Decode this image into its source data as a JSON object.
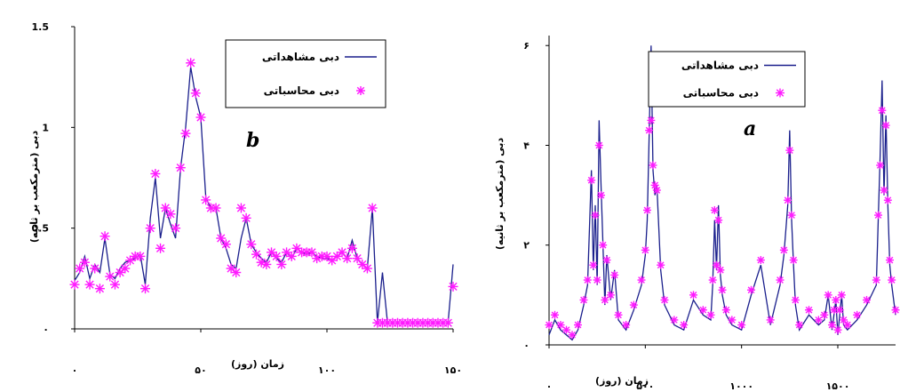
{
  "colors": {
    "observed": "#1a1f8c",
    "computed": "#ff1aff",
    "axis": "#000000"
  },
  "chart_data": [
    {
      "type": "line",
      "panel_label": "b",
      "ylabel": "دبی (مترمکعب بر ثانیه)",
      "xlabel": "زمان (روز)",
      "x_ticks": [
        {
          "value": 0,
          "label": "۰"
        },
        {
          "value": 50,
          "label": "۵۰"
        },
        {
          "value": 100,
          "label": "۱۰۰"
        },
        {
          "value": 150,
          "label": "۱۵۰"
        }
      ],
      "y_ticks": [
        {
          "value": 0,
          "label": "۰"
        },
        {
          "value": 0.5,
          "label": "0.5"
        },
        {
          "value": 1,
          "label": "1"
        },
        {
          "value": 1.5,
          "label": "1.5"
        }
      ],
      "xlim": [
        0,
        150
      ],
      "ylim": [
        0,
        1.5
      ],
      "legend": {
        "position": "top-right"
      },
      "series": [
        {
          "name": "دبی مشاهداتی",
          "style": "line",
          "x": [
            0,
            2,
            4,
            6,
            8,
            10,
            12,
            14,
            16,
            18,
            20,
            22,
            24,
            26,
            28,
            30,
            32,
            34,
            36,
            38,
            40,
            42,
            44,
            46,
            48,
            50,
            52,
            54,
            56,
            58,
            60,
            62,
            64,
            66,
            68,
            70,
            72,
            74,
            76,
            78,
            80,
            82,
            84,
            86,
            88,
            90,
            92,
            94,
            96,
            98,
            100,
            102,
            104,
            106,
            108,
            110,
            112,
            114,
            116,
            118,
            120,
            122,
            124,
            126,
            128,
            130,
            132,
            134,
            136,
            138,
            140,
            142,
            144,
            146,
            148,
            150
          ],
          "values": [
            0.24,
            0.28,
            0.36,
            0.25,
            0.32,
            0.28,
            0.45,
            0.27,
            0.25,
            0.3,
            0.33,
            0.34,
            0.35,
            0.37,
            0.22,
            0.55,
            0.75,
            0.45,
            0.6,
            0.52,
            0.45,
            0.8,
            1.0,
            1.3,
            1.15,
            1.05,
            0.65,
            0.6,
            0.6,
            0.45,
            0.4,
            0.32,
            0.3,
            0.45,
            0.55,
            0.42,
            0.38,
            0.35,
            0.33,
            0.38,
            0.35,
            0.33,
            0.38,
            0.35,
            0.4,
            0.38,
            0.37,
            0.38,
            0.36,
            0.35,
            0.35,
            0.34,
            0.36,
            0.38,
            0.35,
            0.44,
            0.35,
            0.32,
            0.3,
            0.6,
            0.03,
            0.28,
            0.03,
            0.03,
            0.03,
            0.03,
            0.03,
            0.03,
            0.03,
            0.03,
            0.03,
            0.03,
            0.03,
            0.03,
            0.03,
            0.32
          ]
        },
        {
          "name": "دبی محاسباتی",
          "style": "marker",
          "x": [
            0,
            2,
            4,
            6,
            8,
            10,
            12,
            14,
            16,
            18,
            20,
            22,
            24,
            26,
            28,
            30,
            32,
            34,
            36,
            38,
            40,
            42,
            44,
            46,
            48,
            50,
            52,
            54,
            56,
            58,
            60,
            62,
            64,
            66,
            68,
            70,
            72,
            74,
            76,
            78,
            80,
            82,
            84,
            86,
            88,
            90,
            92,
            94,
            96,
            98,
            100,
            102,
            104,
            106,
            108,
            110,
            112,
            114,
            116,
            118,
            120,
            122,
            124,
            126,
            128,
            130,
            132,
            134,
            136,
            138,
            140,
            142,
            144,
            146,
            148,
            150
          ],
          "values": [
            0.22,
            0.3,
            0.33,
            0.22,
            0.3,
            0.2,
            0.46,
            0.26,
            0.22,
            0.28,
            0.3,
            0.34,
            0.36,
            0.36,
            0.2,
            0.5,
            0.77,
            0.4,
            0.6,
            0.57,
            0.5,
            0.8,
            0.97,
            1.32,
            1.17,
            1.05,
            0.64,
            0.6,
            0.6,
            0.45,
            0.42,
            0.3,
            0.28,
            0.6,
            0.55,
            0.42,
            0.37,
            0.33,
            0.32,
            0.38,
            0.36,
            0.32,
            0.38,
            0.36,
            0.4,
            0.38,
            0.38,
            0.38,
            0.35,
            0.36,
            0.36,
            0.34,
            0.36,
            0.38,
            0.35,
            0.4,
            0.35,
            0.32,
            0.3,
            0.6,
            0.03,
            0.03,
            0.03,
            0.03,
            0.03,
            0.03,
            0.03,
            0.03,
            0.03,
            0.03,
            0.03,
            0.03,
            0.03,
            0.03,
            0.03,
            0.21
          ]
        }
      ]
    },
    {
      "type": "line",
      "panel_label": "a",
      "ylabel": "دبی (مترمکعب بر ثانیه)",
      "xlabel": "زمان (روز)",
      "x_ticks": [
        {
          "value": 0,
          "label": "۰"
        },
        {
          "value": 500,
          "label": "۵۰۰"
        },
        {
          "value": 1000,
          "label": "۱۰۰۰"
        },
        {
          "value": 1500,
          "label": "۱۵۰۰"
        }
      ],
      "y_ticks": [
        {
          "value": 0,
          "label": "۰"
        },
        {
          "value": 2,
          "label": "۲"
        },
        {
          "value": 4,
          "label": "۴"
        },
        {
          "value": 6,
          "label": "۶"
        }
      ],
      "xlim": [
        0,
        1800
      ],
      "ylim": [
        0,
        6.2
      ],
      "legend": {
        "position": "top-right"
      },
      "series": [
        {
          "name": "دبی مشاهداتی",
          "style": "line",
          "x": [
            0,
            30,
            60,
            90,
            120,
            150,
            180,
            200,
            220,
            230,
            240,
            250,
            260,
            270,
            280,
            290,
            300,
            320,
            340,
            360,
            400,
            440,
            480,
            500,
            510,
            520,
            530,
            540,
            550,
            560,
            580,
            600,
            650,
            700,
            750,
            800,
            840,
            850,
            860,
            870,
            880,
            890,
            900,
            920,
            950,
            1000,
            1050,
            1100,
            1150,
            1200,
            1220,
            1240,
            1250,
            1260,
            1270,
            1280,
            1300,
            1350,
            1400,
            1430,
            1450,
            1470,
            1480,
            1490,
            1500,
            1510,
            1520,
            1530,
            1550,
            1600,
            1650,
            1700,
            1710,
            1720,
            1730,
            1740,
            1750,
            1760,
            1770,
            1780,
            1800
          ],
          "values": [
            0.2,
            0.5,
            0.3,
            0.2,
            0.1,
            0.3,
            0.8,
            1.2,
            3.5,
            1.5,
            2.8,
            1.2,
            4.5,
            3.2,
            2.0,
            0.8,
            1.8,
            0.9,
            1.5,
            0.5,
            0.3,
            0.7,
            1.2,
            1.8,
            2.5,
            4.2,
            6.0,
            3.5,
            3.0,
            3.2,
            1.5,
            0.8,
            0.4,
            0.3,
            0.9,
            0.6,
            0.5,
            1.2,
            2.5,
            1.5,
            2.8,
            1.4,
            1.0,
            0.6,
            0.4,
            0.3,
            1.0,
            1.6,
            0.4,
            1.2,
            1.8,
            2.8,
            4.3,
            2.5,
            1.6,
            0.8,
            0.3,
            0.6,
            0.4,
            0.5,
            1.0,
            0.3,
            0.6,
            0.9,
            0.2,
            0.6,
            1.0,
            0.4,
            0.3,
            0.5,
            0.8,
            1.2,
            2.5,
            3.8,
            5.3,
            3.0,
            4.6,
            2.8,
            1.6,
            1.2,
            0.6
          ]
        },
        {
          "name": "دبی محاسباتی",
          "style": "marker",
          "x": [
            0,
            30,
            60,
            90,
            120,
            150,
            180,
            200,
            220,
            230,
            240,
            250,
            260,
            270,
            280,
            290,
            300,
            320,
            340,
            360,
            400,
            440,
            480,
            500,
            510,
            520,
            530,
            540,
            550,
            560,
            580,
            600,
            650,
            700,
            750,
            800,
            840,
            850,
            860,
            870,
            880,
            890,
            900,
            920,
            950,
            1000,
            1050,
            1100,
            1150,
            1200,
            1220,
            1240,
            1250,
            1260,
            1270,
            1280,
            1300,
            1350,
            1400,
            1430,
            1450,
            1470,
            1480,
            1490,
            1500,
            1510,
            1520,
            1530,
            1550,
            1600,
            1650,
            1700,
            1710,
            1720,
            1730,
            1740,
            1750,
            1760,
            1770,
            1780,
            1800
          ],
          "values": [
            0.4,
            0.6,
            0.4,
            0.3,
            0.2,
            0.4,
            0.9,
            1.3,
            3.3,
            1.6,
            2.6,
            1.3,
            4.0,
            3.0,
            2.0,
            0.9,
            1.7,
            1.0,
            1.4,
            0.6,
            0.4,
            0.8,
            1.3,
            1.9,
            2.7,
            4.3,
            4.5,
            3.6,
            3.2,
            3.1,
            1.6,
            0.9,
            0.5,
            0.4,
            1.0,
            0.7,
            0.6,
            1.3,
            2.7,
            1.6,
            2.5,
            1.5,
            1.1,
            0.7,
            0.5,
            0.4,
            1.1,
            1.7,
            0.5,
            1.3,
            1.9,
            2.9,
            3.9,
            2.6,
            1.7,
            0.9,
            0.4,
            0.7,
            0.5,
            0.6,
            1.0,
            0.4,
            0.7,
            0.9,
            0.3,
            0.7,
            1.0,
            0.5,
            0.4,
            0.6,
            0.9,
            1.3,
            2.6,
            3.6,
            4.7,
            3.1,
            4.4,
            2.9,
            1.7,
            1.3,
            0.7
          ]
        }
      ]
    }
  ]
}
